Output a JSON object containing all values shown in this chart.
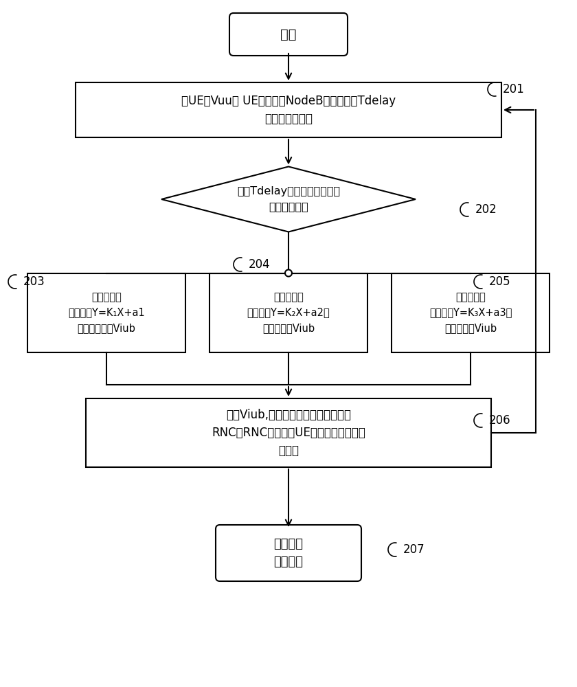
{
  "bg_color": "#ffffff",
  "line_color": "#000000",
  "text_color": "#000000",
  "start_text": "开始",
  "box201_text": "对UE的Vuu， UE数据包在NodeB的缓存时间Tdelay\n进行滤波和记录",
  "box202_text": "根据Tdelay判断属于哪个时间\n段的流控调整",
  "box203_text": "时间段一：\n根据公式Y=K₁X+a1\n求得初始流控Viub",
  "box204_text": "时间段二：\n根据公式Y=K₂X+a2求\n得初始流控Viub",
  "box205_text": "时间段三：\n根据公式Y=K₃X+a3求\n得初始流控Viub",
  "box206_text": "算出Viub,并以能力分配帧的方式通知\nRNC，RNC就知道给UE一定时间发送多少\n数据量",
  "end_text": "结束本次\n流控调整",
  "label_201": "201",
  "label_202": "202",
  "label_203": "203",
  "label_204": "204",
  "label_205": "205",
  "label_206": "206",
  "label_207": "207"
}
